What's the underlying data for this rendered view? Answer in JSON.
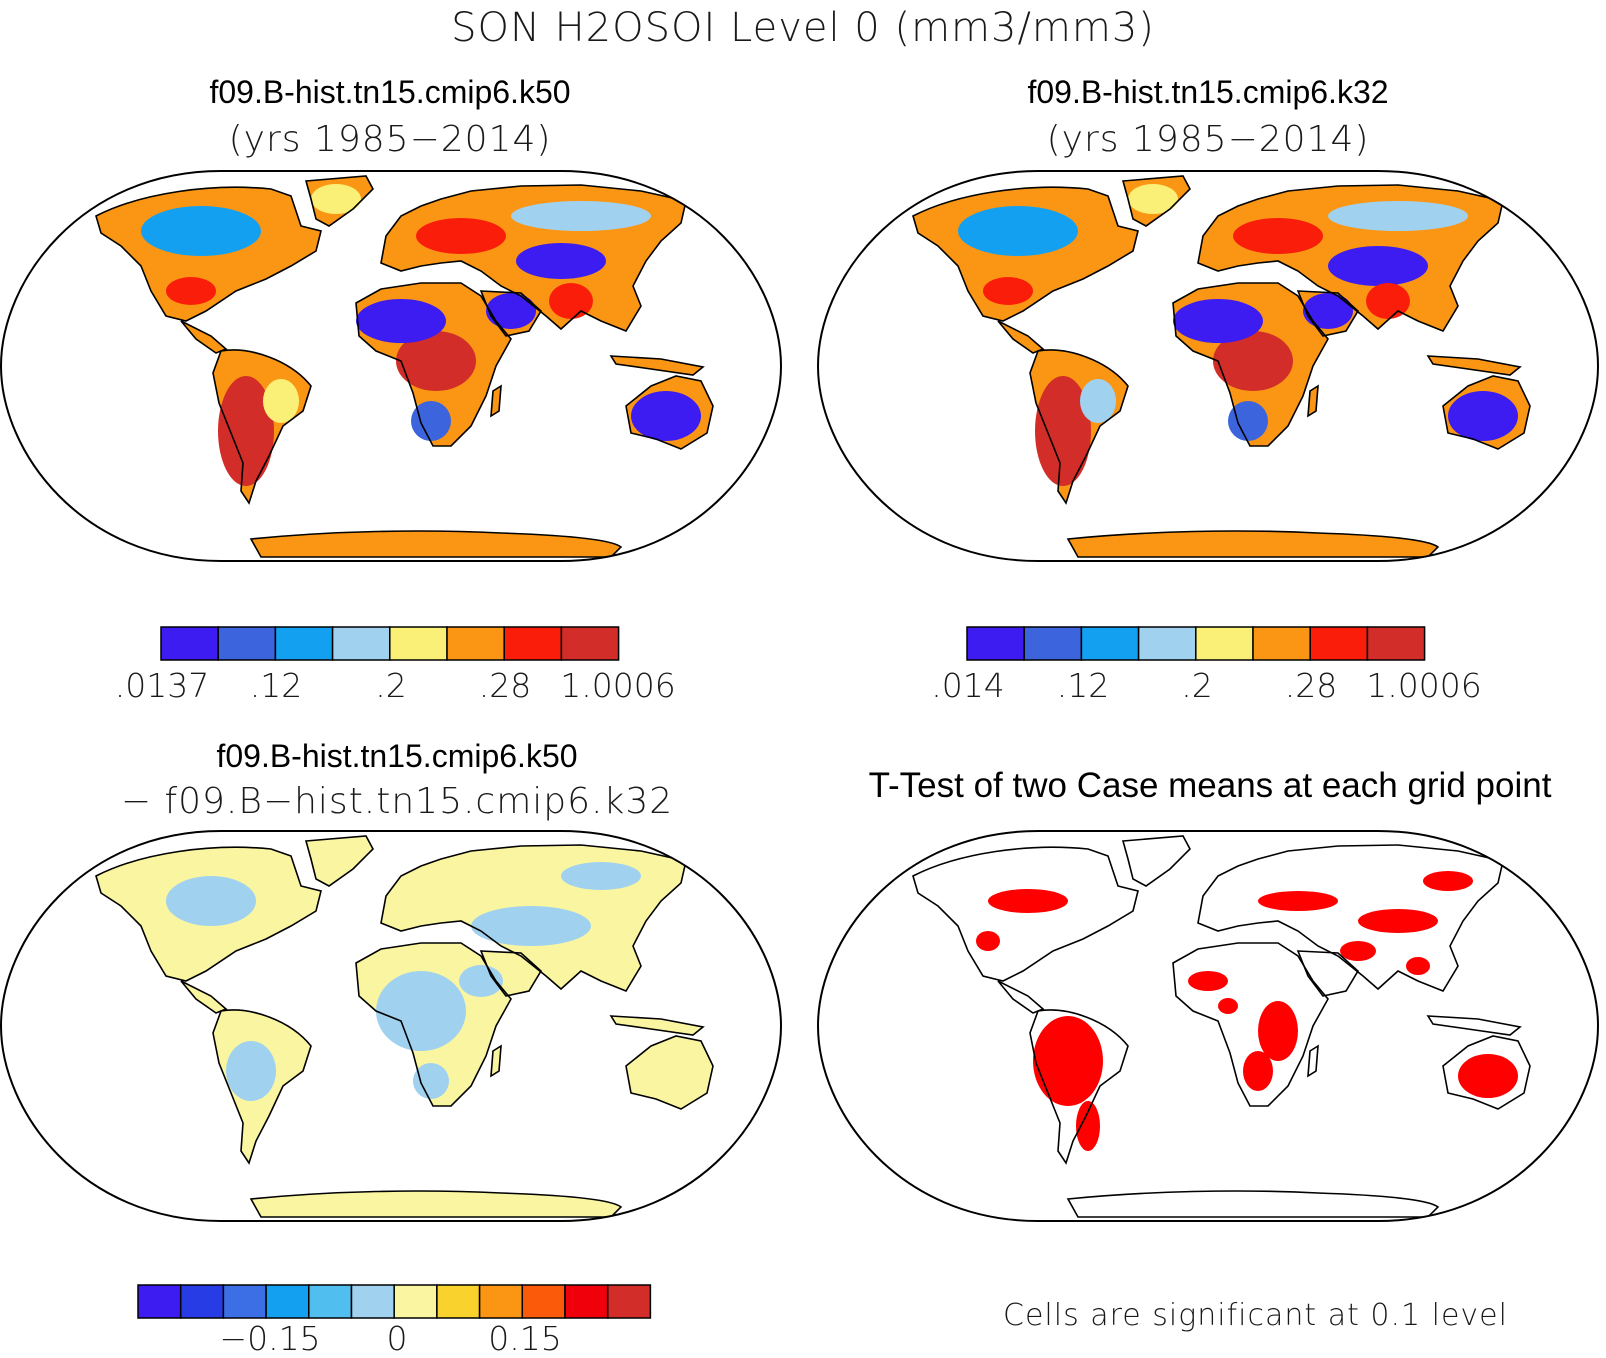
{
  "title": "SON H2OSOI Level 0 (mm3/mm3)",
  "panels": {
    "top_left": {
      "case_name": "f09.B-hist.tn15.cmip6.k50",
      "years": "(yrs 1985−2014)",
      "colorbar": {
        "colors": [
          "#3c1cf0",
          "#3c64dc",
          "#14a0f0",
          "#a0d2f0",
          "#faf078",
          "#fa9614",
          "#fa1e0a",
          "#d22d28"
        ],
        "ticks": [
          ".0137",
          ".12",
          ".2",
          ".28",
          "1.0006"
        ]
      }
    },
    "top_right": {
      "case_name": "f09.B-hist.tn15.cmip6.k32",
      "years": "(yrs 1985−2014)",
      "colorbar": {
        "colors": [
          "#3c1cf0",
          "#3c64dc",
          "#14a0f0",
          "#a0d2f0",
          "#faf078",
          "#fa9614",
          "#fa1e0a",
          "#d22d28"
        ],
        "ticks": [
          ".014",
          ".12",
          ".2",
          ".28",
          "1.0006"
        ]
      }
    },
    "bottom_left": {
      "case_name": "f09.B-hist.tn15.cmip6.k50",
      "subtitle": "− f09.B−hist.tn15.cmip6.k32",
      "colorbar": {
        "colors": [
          "#3c1cf0",
          "#283ce6",
          "#3c6ee6",
          "#14a0f0",
          "#50beef",
          "#a0d2f0",
          "#faf5a0",
          "#fad22d",
          "#fa9614",
          "#fa5a0a",
          "#f0000a",
          "#d22d28"
        ],
        "ticks": [
          "−0.15",
          "0",
          "0.15"
        ]
      }
    },
    "bottom_right": {
      "title": "T-Test of two Case means at each grid point",
      "significance_color": "#ff0000",
      "note": "Cells are significant at 0.1 level"
    }
  }
}
